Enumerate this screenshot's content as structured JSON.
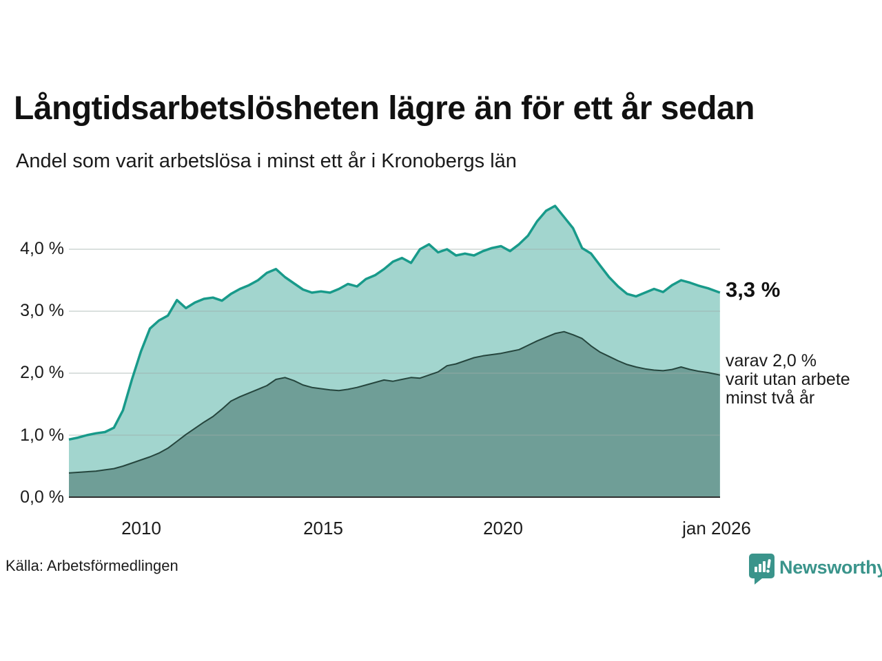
{
  "header": {
    "title": "Långtidsarbetslösheten lägre än för ett år sedan",
    "subtitle": "Andel som varit arbetslösa i minst ett år i Kronobergs län"
  },
  "chart_data": {
    "type": "area",
    "title": "Långtidsarbetslösheten lägre än för ett år sedan",
    "subtitle": "Andel som varit arbetslösa i minst ett år i Kronobergs län",
    "xlabel": "",
    "ylabel": "",
    "x_unit": "decimal_year",
    "ylim": [
      0,
      4.8
    ],
    "grid": true,
    "legend_position": "none",
    "x": [
      2008.0,
      2008.25,
      2008.5,
      2008.75,
      2009.0,
      2009.25,
      2009.5,
      2009.75,
      2010.0,
      2010.25,
      2010.5,
      2010.75,
      2011.0,
      2011.25,
      2011.5,
      2011.75,
      2012.0,
      2012.25,
      2012.5,
      2012.75,
      2013.0,
      2013.25,
      2013.5,
      2013.75,
      2014.0,
      2014.25,
      2014.5,
      2014.75,
      2015.0,
      2015.25,
      2015.5,
      2015.75,
      2016.0,
      2016.25,
      2016.5,
      2016.75,
      2017.0,
      2017.25,
      2017.5,
      2017.75,
      2018.0,
      2018.25,
      2018.5,
      2018.75,
      2019.0,
      2019.25,
      2019.5,
      2019.75,
      2020.0,
      2020.25,
      2020.5,
      2020.75,
      2021.0,
      2021.25,
      2021.5,
      2021.75,
      2022.0,
      2022.25,
      2022.5,
      2022.75,
      2023.0,
      2023.25,
      2023.5,
      2023.75,
      2024.0,
      2024.25,
      2024.5,
      2024.75,
      2025.0,
      2025.25,
      2025.5,
      2025.75,
      2026.08
    ],
    "series": [
      {
        "name": "Andel arbetslösa minst ett år",
        "color": "#189a8a",
        "fill": "#a2d5ce",
        "stroke_width": 3.5,
        "values": [
          0.93,
          0.96,
          1.0,
          1.03,
          1.05,
          1.12,
          1.4,
          1.9,
          2.35,
          2.72,
          2.85,
          2.93,
          3.18,
          3.05,
          3.14,
          3.2,
          3.22,
          3.17,
          3.28,
          3.36,
          3.42,
          3.5,
          3.62,
          3.68,
          3.55,
          3.45,
          3.35,
          3.3,
          3.32,
          3.3,
          3.36,
          3.44,
          3.4,
          3.52,
          3.58,
          3.68,
          3.8,
          3.86,
          3.78,
          4.0,
          4.08,
          3.95,
          4.0,
          3.9,
          3.93,
          3.9,
          3.97,
          4.02,
          4.05,
          3.97,
          4.08,
          4.22,
          4.45,
          4.62,
          4.7,
          4.52,
          4.34,
          4.02,
          3.93,
          3.74,
          3.55,
          3.4,
          3.28,
          3.24,
          3.3,
          3.36,
          3.31,
          3.42,
          3.5,
          3.46,
          3.41,
          3.37,
          3.3
        ]
      },
      {
        "name": "varav utan arbete minst två år",
        "color": "#25453d",
        "fill": "#6f9e97",
        "stroke_width": 2,
        "values": [
          0.39,
          0.4,
          0.41,
          0.42,
          0.44,
          0.46,
          0.5,
          0.55,
          0.6,
          0.65,
          0.71,
          0.79,
          0.9,
          1.01,
          1.11,
          1.21,
          1.3,
          1.42,
          1.55,
          1.62,
          1.68,
          1.74,
          1.8,
          1.9,
          1.93,
          1.88,
          1.81,
          1.77,
          1.75,
          1.73,
          1.72,
          1.74,
          1.77,
          1.81,
          1.85,
          1.89,
          1.87,
          1.9,
          1.93,
          1.92,
          1.97,
          2.02,
          2.12,
          2.15,
          2.2,
          2.25,
          2.28,
          2.3,
          2.32,
          2.35,
          2.38,
          2.45,
          2.52,
          2.58,
          2.64,
          2.67,
          2.62,
          2.56,
          2.44,
          2.34,
          2.27,
          2.2,
          2.14,
          2.1,
          2.07,
          2.05,
          2.04,
          2.06,
          2.1,
          2.06,
          2.03,
          2.01,
          1.97
        ]
      }
    ],
    "yticks": [
      {
        "v": 0,
        "label": "0,0 %"
      },
      {
        "v": 1,
        "label": "1,0 %"
      },
      {
        "v": 2,
        "label": "2,0 %"
      },
      {
        "v": 3,
        "label": "3,0 %"
      },
      {
        "v": 4,
        "label": "4,0 %"
      }
    ],
    "xticks": [
      {
        "v": 2010,
        "label": "2010"
      },
      {
        "v": 2015,
        "label": "2015"
      },
      {
        "v": 2020,
        "label": "2020"
      },
      {
        "v": 2026.0,
        "label": "jan 2026"
      }
    ],
    "annotations": {
      "latest_value": "3,3 %",
      "secondary_lines": [
        "varav 2,0 %",
        "varit utan arbete",
        "minst två år"
      ]
    }
  },
  "source": {
    "label": "Källa: Arbetsförmedlingen"
  },
  "branding": {
    "name": "Newsworthy",
    "color": "#3a948b",
    "icon": "bar-chart-speech-bubble"
  }
}
